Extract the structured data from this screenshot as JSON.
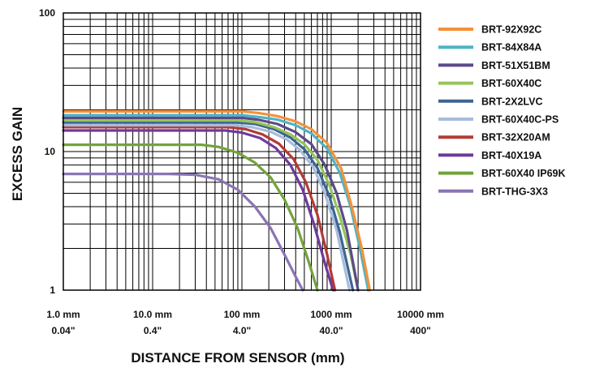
{
  "chart_data": {
    "type": "line",
    "xlabel": "DISTANCE FROM SENSOR (mm)",
    "ylabel": "EXCESS GAIN",
    "xscale": "log",
    "yscale": "log",
    "xlim": [
      1,
      10000
    ],
    "ylim": [
      1,
      100
    ],
    "grid": true,
    "legend_position": "right",
    "x_ticks": [
      {
        "value": 1,
        "mm": "1.0 mm",
        "inch": "0.04\""
      },
      {
        "value": 10,
        "mm": "10.0 mm",
        "inch": "0.4\""
      },
      {
        "value": 100,
        "mm": "100 mm",
        "inch": "4.0\""
      },
      {
        "value": 1000,
        "mm": "1000 mm",
        "inch": "40.0\""
      },
      {
        "value": 10000,
        "mm": "10000 mm",
        "inch": "400\""
      }
    ],
    "y_ticks": [
      {
        "value": 1,
        "label": "1"
      },
      {
        "value": 10,
        "label": "10"
      },
      {
        "value": 100,
        "label": "100"
      }
    ],
    "series": [
      {
        "name": "BRT-92X92C",
        "color": "#f4913a",
        "points": [
          [
            1,
            19.5
          ],
          [
            100,
            19.5
          ],
          [
            150,
            19
          ],
          [
            250,
            18
          ],
          [
            400,
            16.5
          ],
          [
            600,
            14.5
          ],
          [
            900,
            11.5
          ],
          [
            1300,
            7.5
          ],
          [
            1700,
            4
          ],
          [
            2200,
            2
          ],
          [
            2700,
            1
          ]
        ]
      },
      {
        "name": "BRT-84X84A",
        "color": "#4eb3c6",
        "points": [
          [
            1,
            18.3
          ],
          [
            100,
            18.3
          ],
          [
            150,
            17.8
          ],
          [
            250,
            17
          ],
          [
            400,
            15.5
          ],
          [
            600,
            13.5
          ],
          [
            900,
            10.5
          ],
          [
            1250,
            7
          ],
          [
            1650,
            4
          ],
          [
            2100,
            2
          ],
          [
            2600,
            1
          ]
        ]
      },
      {
        "name": "BRT-51X51BM",
        "color": "#5b4a8a",
        "points": [
          [
            1,
            17.5
          ],
          [
            100,
            17.5
          ],
          [
            150,
            17
          ],
          [
            250,
            15.8
          ],
          [
            400,
            13.8
          ],
          [
            600,
            11.3
          ],
          [
            850,
            8
          ],
          [
            1150,
            5
          ],
          [
            1500,
            2.7
          ],
          [
            2000,
            1
          ]
        ]
      },
      {
        "name": "BRT-60X40C",
        "color": "#95c459",
        "points": [
          [
            1,
            16.8
          ],
          [
            90,
            16.8
          ],
          [
            140,
            16.3
          ],
          [
            230,
            15
          ],
          [
            350,
            13.3
          ],
          [
            500,
            11.3
          ],
          [
            700,
            8.7
          ],
          [
            950,
            5.8
          ],
          [
            1250,
            3.4
          ],
          [
            1650,
            1.8
          ],
          [
            2000,
            1
          ]
        ]
      },
      {
        "name": "BRT-2X2LVC",
        "color": "#3d6592",
        "points": [
          [
            1,
            16.2
          ],
          [
            90,
            16.2
          ],
          [
            140,
            15.8
          ],
          [
            230,
            14.5
          ],
          [
            350,
            12.6
          ],
          [
            500,
            10.4
          ],
          [
            700,
            7.6
          ],
          [
            950,
            4.8
          ],
          [
            1250,
            2.6
          ],
          [
            1750,
            1
          ]
        ]
      },
      {
        "name": "BRT-60X40C-PS",
        "color": "#a7bcdc",
        "points": [
          [
            1,
            15.5
          ],
          [
            85,
            15.5
          ],
          [
            130,
            15
          ],
          [
            210,
            13.9
          ],
          [
            320,
            12.2
          ],
          [
            450,
            10.2
          ],
          [
            630,
            7.7
          ],
          [
            850,
            5
          ],
          [
            1150,
            2.7
          ],
          [
            1600,
            1
          ]
        ]
      },
      {
        "name": "BRT-32X20AM",
        "color": "#b33b36",
        "points": [
          [
            1,
            15
          ],
          [
            70,
            15
          ],
          [
            110,
            14.5
          ],
          [
            170,
            13.3
          ],
          [
            260,
            11.4
          ],
          [
            380,
            8.8
          ],
          [
            520,
            6
          ],
          [
            700,
            3.5
          ],
          [
            900,
            1.8
          ],
          [
            1100,
            1
          ]
        ]
      },
      {
        "name": "BRT-40X19A",
        "color": "#6d3a9c",
        "points": [
          [
            1,
            14.2
          ],
          [
            65,
            14.2
          ],
          [
            100,
            13.7
          ],
          [
            160,
            12.5
          ],
          [
            240,
            10.6
          ],
          [
            350,
            8
          ],
          [
            480,
            5.3
          ],
          [
            640,
            3
          ],
          [
            840,
            1.6
          ],
          [
            1050,
            1
          ]
        ]
      },
      {
        "name": "BRT-60X40 IP69K",
        "color": "#72a33c",
        "points": [
          [
            1,
            11.2
          ],
          [
            35,
            11.2
          ],
          [
            55,
            10.8
          ],
          [
            90,
            9.8
          ],
          [
            140,
            8.3
          ],
          [
            210,
            6.5
          ],
          [
            300,
            4.5
          ],
          [
            420,
            2.8
          ],
          [
            560,
            1.6
          ],
          [
            700,
            1
          ]
        ]
      },
      {
        "name": "BRT-THG-3X3",
        "color": "#8b74b5",
        "points": [
          [
            1,
            6.9
          ],
          [
            15,
            6.9
          ],
          [
            30,
            6.8
          ],
          [
            55,
            6.3
          ],
          [
            90,
            5.3
          ],
          [
            140,
            4
          ],
          [
            210,
            2.8
          ],
          [
            300,
            1.8
          ],
          [
            400,
            1.25
          ],
          [
            480,
            1
          ]
        ]
      }
    ]
  }
}
